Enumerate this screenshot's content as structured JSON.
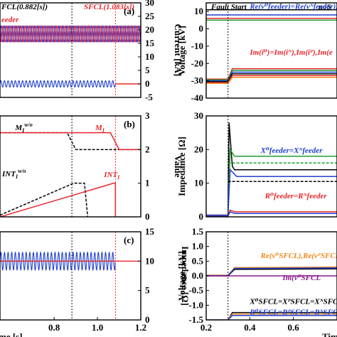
{
  "figure": {
    "left_top_note": "FCL(0.882[s])",
    "left_top_note2": "SFCL(1.083[s])",
    "left_feeder_tag": "eeder",
    "right_top_note": "Fault Start",
    "right_top_note2": "noS",
    "colors": {
      "red": "#e8262a",
      "blue": "#1f3fd1",
      "black": "#000000",
      "green": "#1e9e2e",
      "orange": "#f08a1c",
      "purple": "#8a1a8e",
      "fault_line": "#111111"
    }
  },
  "chart_data": [
    {
      "id": "a",
      "type": "line",
      "panel_label": "(a)",
      "xlabel": "",
      "ylabel": "Current [kA]",
      "xlim": [
        0.55,
        1.2
      ],
      "ylim": [
        -5,
        30
      ],
      "yticks": [
        "-5",
        "0",
        "5",
        "10",
        "15",
        "20",
        "25",
        "30"
      ],
      "vlines": [
        0.882,
        1.083
      ],
      "series": [
        {
          "name": "feeder current (3-phase band)",
          "color": "blue",
          "kind": "band",
          "center": 18.5,
          "amplitude": 3,
          "x_end": 1.2
        },
        {
          "name": "SFCL current",
          "color": "blue",
          "kind": "osc",
          "center": 0,
          "amplitude": 1.2,
          "x_end": 1.083
        },
        {
          "name": "post-interrupt",
          "color": "red",
          "kind": "flat",
          "value": 0,
          "x_start": 1.083
        }
      ]
    },
    {
      "id": "b",
      "type": "line",
      "panel_label": "(b)",
      "xlabel": "",
      "ylabel": "Value",
      "xlim": [
        0.55,
        1.2
      ],
      "ylim": [
        0,
        3
      ],
      "yticks": [
        "0",
        "1",
        "2",
        "3"
      ],
      "vlines": [
        0.882,
        1.083
      ],
      "series": [
        {
          "name": "MI w/o",
          "color": "black",
          "dashed": true,
          "x": [
            0.55,
            0.86,
            0.9,
            1.2
          ],
          "y": [
            2.5,
            2.5,
            2.0,
            2.0
          ]
        },
        {
          "name": "MI",
          "color": "red",
          "x": [
            0.55,
            1.06,
            1.1,
            1.2
          ],
          "y": [
            2.5,
            2.5,
            2.0,
            2.0
          ]
        },
        {
          "name": "INTI w/o",
          "color": "black",
          "dashed": true,
          "x": [
            0.55,
            0.89,
            0.94,
            0.955
          ],
          "y": [
            0.05,
            1.0,
            1.0,
            0.0
          ]
        },
        {
          "name": "INTI",
          "color": "red",
          "x": [
            0.55,
            1.075,
            1.083,
            1.083
          ],
          "y": [
            0.0,
            1.0,
            1.0,
            0.0
          ]
        }
      ],
      "labels": [
        {
          "text": "M",
          "sub": "I",
          "sup": "w/o",
          "color": "black",
          "x": 0.62,
          "y": 2.58
        },
        {
          "text": "M",
          "sub": "I",
          "color": "red",
          "x": 0.99,
          "y": 2.58
        },
        {
          "text": "INT",
          "sub": "I",
          "sup": "w/o",
          "color": "black",
          "x": 0.56,
          "y": 1.2
        },
        {
          "text": "INT",
          "sub": "I",
          "color": "red",
          "x": 1.03,
          "y": 1.18
        }
      ]
    },
    {
      "id": "c",
      "type": "line",
      "panel_label": "(c)",
      "xlabel": "me [s]",
      "ylabel": "Impedance [Ω]",
      "xlim": [
        0.55,
        1.2
      ],
      "ylim": [
        0,
        15
      ],
      "yticks": [
        "0",
        "5",
        "10",
        "15"
      ],
      "xticks": [
        "0.8",
        "1.0",
        "1.2"
      ],
      "xtick_values": [
        0.8,
        1.0,
        1.2
      ],
      "vlines": [
        0.882,
        1.083
      ],
      "series": [
        {
          "name": "Impedance",
          "color": "blue",
          "kind": "osc",
          "center": 10,
          "amplitude": 1.5,
          "x_end": 1.083
        },
        {
          "name": "Impedance flat",
          "color": "red",
          "kind": "flat",
          "value": 10,
          "x_start": 0.55
        }
      ]
    },
    {
      "id": "d",
      "type": "line",
      "xlabel": "",
      "ylabel": "Voltage [kV]",
      "xlim": [
        0.2,
        0.8
      ],
      "ylim": [
        -40,
        15
      ],
      "yticks": [
        "-40",
        "-30",
        "-20",
        "-10",
        "0",
        "10"
      ],
      "vlines": [
        0.3
      ],
      "series": [
        {
          "name": "Re feeder 1",
          "color": "black",
          "x": [
            0.2,
            0.8
          ],
          "y": [
            11,
            11
          ]
        },
        {
          "name": "Re feeder 2",
          "color": "blue",
          "x": [
            0.2,
            0.8
          ],
          "y": [
            8,
            8
          ]
        },
        {
          "name": "Re feeder 3",
          "color": "red",
          "x": [
            0.2,
            0.8
          ],
          "y": [
            6,
            6
          ]
        },
        {
          "name": "Re feeder 4",
          "color": "green",
          "x": [
            0.2,
            0.8
          ],
          "y": [
            5,
            5
          ]
        },
        {
          "name": "Im 1",
          "color": "red",
          "x": [
            0.2,
            0.3,
            0.32,
            0.8
          ],
          "y": [
            -29,
            -29,
            -23,
            -23
          ]
        },
        {
          "name": "Im 2",
          "color": "green",
          "x": [
            0.2,
            0.3,
            0.32,
            0.8
          ],
          "y": [
            -29.5,
            -29.5,
            -24,
            -24
          ]
        },
        {
          "name": "Im 3",
          "color": "blue",
          "x": [
            0.2,
            0.3,
            0.32,
            0.8
          ],
          "y": [
            -30,
            -30,
            -25,
            -25
          ]
        },
        {
          "name": "Im 4",
          "color": "black",
          "x": [
            0.2,
            0.3,
            0.32,
            0.8
          ],
          "y": [
            -30.5,
            -30.5,
            -26,
            -26
          ]
        },
        {
          "name": "Im 5",
          "color": "red",
          "x": [
            0.2,
            0.3,
            0.32,
            0.8
          ],
          "y": [
            -31,
            -31,
            -27,
            -27
          ]
        },
        {
          "name": "Im 6",
          "color": "orange",
          "x": [
            0.2,
            0.3,
            0.32,
            0.8
          ],
          "y": [
            -31.5,
            -31.5,
            -28,
            -28
          ]
        }
      ],
      "labels": [
        {
          "text": "Re(v⁰feeder)=Re(vᴺfeeder),Re(vᴾfeeder",
          "color": "blue",
          "x": 0.4,
          "y": 11.5
        },
        {
          "text": "Im(i⁰)=Im(iᴺ),Im(iᴾ),Im(e",
          "color": "red",
          "x": 0.4,
          "y": -15
        }
      ]
    },
    {
      "id": "e",
      "type": "line",
      "xlabel": "",
      "ylabel": "Impedance [Ω]",
      "xlim": [
        0.2,
        0.8
      ],
      "ylim": [
        0,
        30
      ],
      "yticks": [
        "0",
        "10",
        "20",
        "30"
      ],
      "vlines": [
        0.3
      ],
      "series": [
        {
          "name": "X spike",
          "color": "black",
          "x": [
            0.2,
            0.3,
            0.305,
            0.32,
            0.33,
            0.8
          ],
          "y": [
            0.5,
            0.5,
            28,
            15,
            14,
            14
          ]
        },
        {
          "name": "X green",
          "color": "green",
          "x": [
            0.2,
            0.3,
            0.31,
            0.33,
            0.8
          ],
          "y": [
            0.5,
            0.5,
            20,
            18,
            18
          ]
        },
        {
          "name": "X dashed green",
          "color": "green",
          "dashed": true,
          "x": [
            0.3,
            0.33,
            0.8
          ],
          "y": [
            16,
            16,
            16
          ]
        },
        {
          "name": "X blue",
          "color": "blue",
          "x": [
            0.2,
            0.3,
            0.31,
            0.34,
            0.8
          ],
          "y": [
            0.5,
            0.5,
            14,
            12,
            12
          ]
        },
        {
          "name": "X dashed black",
          "color": "black",
          "dashed": true,
          "x": [
            0.3,
            0.33,
            0.8
          ],
          "y": [
            10.5,
            10.5,
            10.5
          ]
        },
        {
          "name": "R red",
          "color": "red",
          "x": [
            0.2,
            0.3,
            0.31,
            0.33,
            0.8
          ],
          "y": [
            0.3,
            0.3,
            2,
            1.5,
            1.5
          ]
        },
        {
          "name": "R blue",
          "color": "blue",
          "x": [
            0.2,
            0.3,
            0.31,
            0.33,
            0.8
          ],
          "y": [
            0.2,
            0.2,
            1.5,
            1.0,
            1.0
          ]
        }
      ],
      "labels": [
        {
          "text": "X⁰feeder=Xᴺfeeder",
          "color": "blue",
          "x": 0.45,
          "y": 19
        },
        {
          "text": "R⁰feeder=Rᴺfeeder",
          "color": "red",
          "x": 0.47,
          "y": 5.5
        }
      ]
    },
    {
      "id": "f",
      "type": "line",
      "xlabel": "Tim",
      "ylabel": "Voltage [kV]",
      "xlim": [
        0.2,
        0.8
      ],
      "ylim": [
        -1.5,
        1.5
      ],
      "yticks": [
        "-1.5",
        "-1.0",
        "-0.5",
        "0.0",
        "0.5",
        "1.0",
        "1.5"
      ],
      "xticks": [
        "0.2",
        "0.4",
        "0.6"
      ],
      "xtick_values": [
        0.2,
        0.4,
        0.6
      ],
      "vlines": [
        0.3
      ],
      "series": [
        {
          "name": "Re SFCL orange",
          "color": "orange",
          "x": [
            0.2,
            0.3,
            0.33,
            0.8
          ],
          "y": [
            0.02,
            0.02,
            0.28,
            0.3
          ]
        },
        {
          "name": "Re SFCL black",
          "color": "black",
          "x": [
            0.2,
            0.3,
            0.33,
            0.8
          ],
          "y": [
            0.0,
            0.0,
            0.22,
            0.24
          ]
        },
        {
          "name": "Re SFCL blue",
          "color": "blue",
          "x": [
            0.2,
            0.3,
            0.33,
            0.8
          ],
          "y": [
            0.01,
            0.01,
            0.25,
            0.27
          ]
        },
        {
          "name": "Im SFCL",
          "color": "purple",
          "x": [
            0.2,
            0.8
          ],
          "y": [
            0.0,
            0.0
          ]
        },
        {
          "name": "X SFCL black",
          "color": "black",
          "x": [
            0.2,
            0.3,
            0.32,
            0.8
          ],
          "y": [
            -1.5,
            -1.5,
            -1.25,
            -1.25
          ]
        },
        {
          "name": "R SFCL orange",
          "color": "orange",
          "x": [
            0.2,
            0.3,
            0.32,
            0.8
          ],
          "y": [
            -1.5,
            -1.5,
            -1.3,
            -1.3
          ]
        },
        {
          "name": "R SFCL blue",
          "color": "blue",
          "x": [
            0.2,
            0.3,
            0.32,
            0.8
          ],
          "y": [
            -1.5,
            -1.5,
            -1.35,
            -1.35
          ]
        }
      ],
      "labels": [
        {
          "text": "Re(v⁰SFCL),Re(vᴾSFCL",
          "color": "orange",
          "x": 0.45,
          "y": 0.6
        },
        {
          "text": "Im(v⁰SFCL",
          "color": "purple",
          "x": 0.55,
          "y": -0.15
        },
        {
          "text": "X⁰SFCL=XᴾSFCL=XᴺSFCL",
          "color": "black",
          "x": 0.4,
          "y": -0.95
        },
        {
          "text": "R⁰SFCL=RᴾSFCL=RᴺSFCL",
          "color": "blue",
          "x": 0.4,
          "y": -1.32
        }
      ]
    }
  ]
}
